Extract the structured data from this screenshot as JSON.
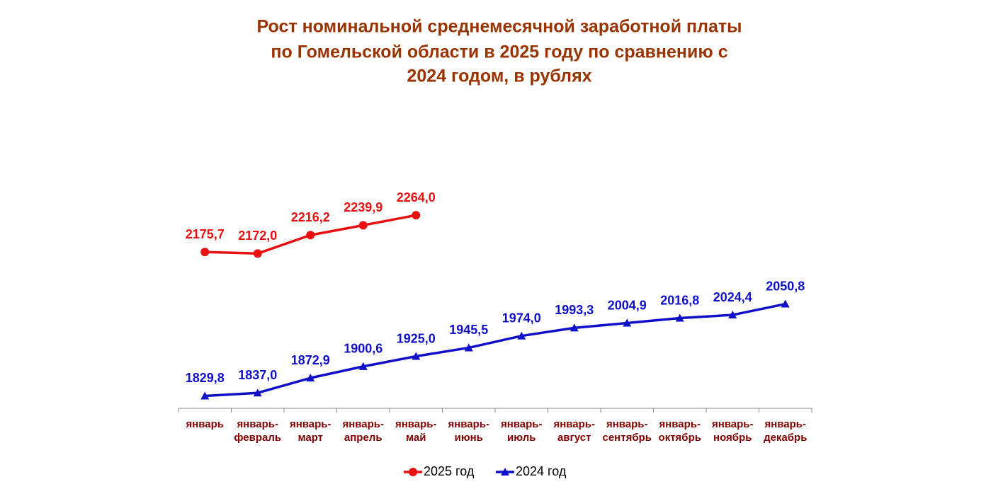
{
  "chart_data": {
    "type": "line",
    "title": [
      "Рост номинальной среднемесячной заработной платы",
      "по Гомельской области в 2025 году по сравнению с",
      "2024 годом, в рублях"
    ],
    "categories": [
      "январь",
      "январь-февраль",
      "январь-март",
      "январь-апрель",
      "январь-май",
      "январь-июнь",
      "январь-июль",
      "январь-август",
      "январь-сентябрь",
      "январь-октябрь",
      "январь-ноябрь",
      "январь-декабрь"
    ],
    "series": [
      {
        "name": "2025 год",
        "color": "#e81010",
        "marker": "circle",
        "values": [
          2175.7,
          2172.0,
          2216.2,
          2239.9,
          2264.0,
          null,
          null,
          null,
          null,
          null,
          null,
          null
        ],
        "value_labels": [
          "2175,7",
          "2172,0",
          "2216,2",
          "2239,9",
          "2264,0",
          null,
          null,
          null,
          null,
          null,
          null,
          null
        ]
      },
      {
        "name": "2024 год",
        "color": "#1010c8",
        "marker": "triangle",
        "values": [
          1829.8,
          1837.0,
          1872.9,
          1900.6,
          1925.0,
          1945.5,
          1974.0,
          1993.3,
          2004.9,
          2016.8,
          2024.4,
          2050.8
        ],
        "value_labels": [
          "1829,8",
          "1837,0",
          "1872,9",
          "1900,6",
          "1925,0",
          "1945,5",
          "1974,0",
          "1993,3",
          "2004,9",
          "2016,8",
          "2024,4",
          "2050,8"
        ]
      }
    ],
    "ylim": [
      1800,
      2300
    ],
    "legend": "bottom"
  }
}
